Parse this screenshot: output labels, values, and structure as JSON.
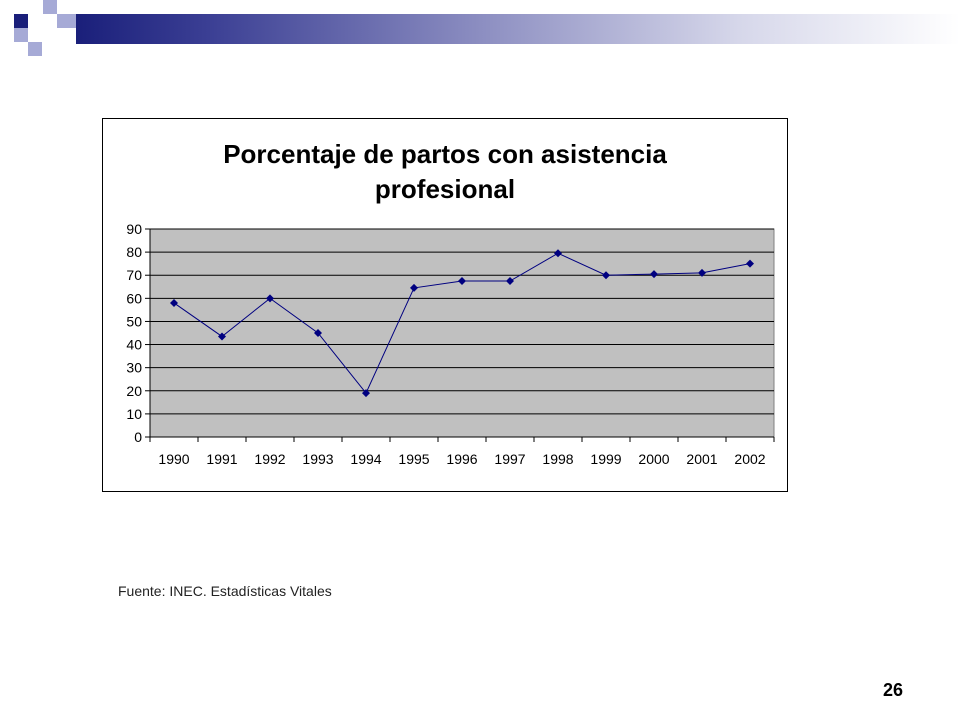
{
  "slide": {
    "source_text": "Fuente: INEC. Estadísticas Vitales",
    "page_number": "26",
    "colors": {
      "header_dark": "#1a1f7a",
      "square_light": "#9ea3d4",
      "plot_bg": "#c0c0c0",
      "series": "#000080"
    }
  },
  "chart_data": {
    "type": "line",
    "title_lines": [
      "Porcentaje de partos con asistencia",
      "profesional"
    ],
    "categories": [
      "1990",
      "1991",
      "1992",
      "1993",
      "1994",
      "1995",
      "1996",
      "1997",
      "1998",
      "1999",
      "2000",
      "2001",
      "2002"
    ],
    "series": [
      {
        "values": [
          58,
          43.5,
          60,
          45,
          19,
          64.5,
          67.5,
          67.5,
          79.5,
          70,
          70.5,
          71,
          75
        ]
      }
    ],
    "ylim": [
      0,
      90
    ],
    "yticks": [
      0,
      10,
      20,
      30,
      40,
      50,
      60,
      70,
      80,
      90
    ],
    "grid": true,
    "legend": "none",
    "xlabel": "",
    "ylabel": ""
  }
}
